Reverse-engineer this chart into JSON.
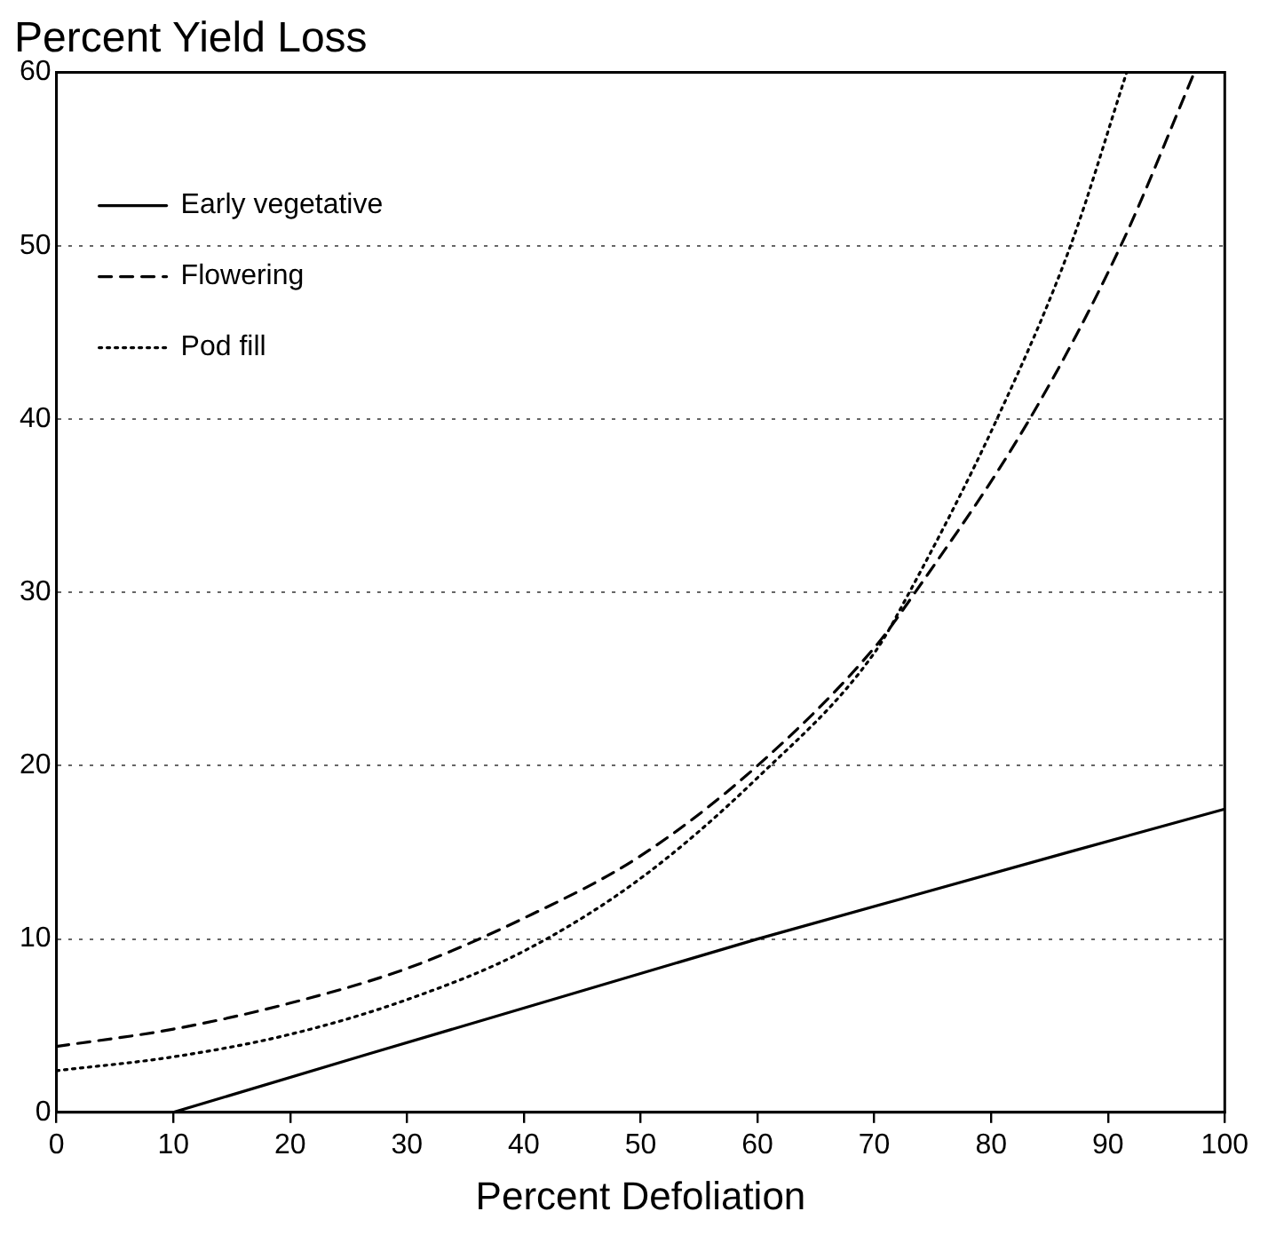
{
  "chart_data": {
    "type": "line",
    "title": "Percent Yield Loss",
    "xlabel": "Percent Defoliation",
    "xlim": [
      0,
      100
    ],
    "xticks": [
      0,
      10,
      20,
      30,
      40,
      50,
      60,
      70,
      80,
      90,
      100
    ],
    "ylim": [
      0,
      60
    ],
    "yticks": [
      0,
      10,
      20,
      30,
      40,
      50,
      60
    ],
    "grid": "y",
    "legend": "top left",
    "marker": "none",
    "series": [
      {
        "name": "Early vegetative",
        "color": "#000000",
        "line_style": "solid",
        "x": [
          10,
          60,
          100
        ],
        "values": [
          0,
          10,
          17.5
        ]
      },
      {
        "name": "Flowering",
        "color": "#000000",
        "line_style": "dashed",
        "x": [
          0,
          10,
          20,
          30,
          40,
          50,
          60,
          70,
          73.5,
          83.3,
          91.1,
          97.4
        ],
        "values": [
          3.8,
          4.8,
          6.3,
          8.3,
          11.2,
          14.8,
          20,
          26.8,
          30,
          40,
          50,
          60
        ]
      },
      {
        "name": "Pod fill",
        "color": "#000000",
        "line_style": "dotted",
        "x": [
          0,
          10,
          20,
          30,
          40,
          50,
          60,
          70,
          73,
          80.5,
          86.8,
          91.6
        ],
        "values": [
          2.4,
          3.2,
          4.5,
          6.5,
          9.3,
          13.5,
          19.3,
          26.5,
          30,
          40,
          50,
          60
        ]
      }
    ]
  }
}
